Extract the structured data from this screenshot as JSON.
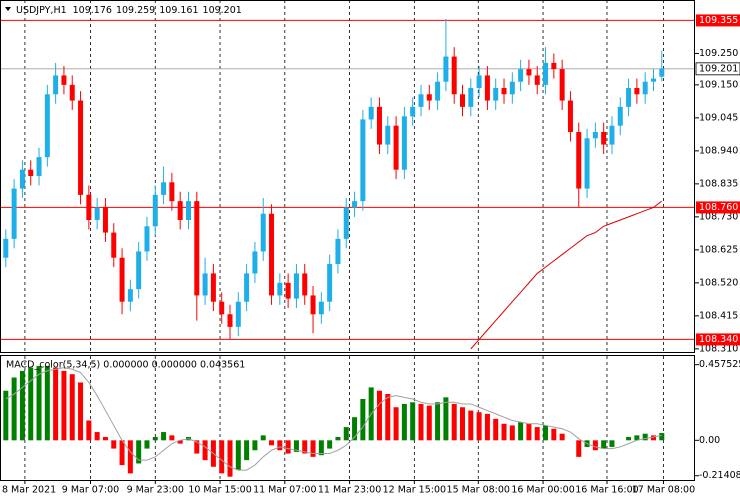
{
  "chart_data": {
    "type": "candlestick",
    "symbol": "USDJPY,H1",
    "up_color": "#1eaee8",
    "down_color": "#ff0000",
    "open": [
      108.6,
      108.66,
      108.82,
      108.88,
      108.86,
      108.92,
      109.12,
      109.18,
      109.15,
      109.1,
      108.8,
      108.72,
      108.76,
      108.68,
      108.6,
      108.46,
      108.5,
      108.62,
      108.7,
      108.8,
      108.84,
      108.78,
      108.72,
      108.78,
      108.48,
      108.55,
      108.46,
      108.42,
      108.38,
      108.46,
      108.55,
      108.62,
      108.74,
      108.48,
      108.52,
      108.47,
      108.55,
      108.48,
      108.42,
      108.46,
      108.58,
      108.66,
      108.76,
      108.78,
      109.04,
      109.08,
      108.96,
      109.02,
      108.88,
      109.05,
      109.08,
      109.12,
      109.1,
      109.16,
      109.24,
      109.12,
      109.08,
      109.14,
      109.18,
      109.1,
      109.14,
      109.12,
      109.16,
      109.2,
      109.18,
      109.15,
      109.22,
      109.2,
      109.1,
      109.0,
      108.82,
      108.98,
      109.0,
      108.96,
      109.02,
      109.08,
      109.14,
      109.12,
      109.16,
      109.176
    ],
    "high": [
      108.69,
      108.85,
      108.91,
      108.91,
      108.95,
      109.15,
      109.22,
      109.21,
      109.18,
      109.13,
      108.83,
      108.79,
      108.79,
      108.71,
      108.63,
      108.53,
      108.65,
      108.73,
      108.83,
      108.89,
      108.87,
      108.81,
      108.81,
      108.81,
      108.6,
      108.58,
      108.49,
      108.45,
      108.49,
      108.58,
      108.65,
      108.79,
      108.77,
      108.55,
      108.55,
      108.58,
      108.58,
      108.51,
      108.49,
      108.61,
      108.69,
      108.79,
      108.81,
      109.07,
      109.11,
      109.11,
      109.05,
      109.05,
      109.08,
      109.11,
      109.15,
      109.15,
      109.19,
      109.36,
      109.27,
      109.15,
      109.17,
      109.21,
      109.21,
      109.17,
      109.17,
      109.19,
      109.23,
      109.23,
      109.21,
      109.27,
      109.25,
      109.23,
      109.13,
      109.03,
      109.01,
      109.03,
      109.03,
      109.05,
      109.11,
      109.17,
      109.17,
      109.19,
      109.2,
      109.259
    ],
    "low": [
      108.57,
      108.63,
      108.79,
      108.83,
      108.83,
      108.89,
      109.09,
      109.12,
      109.07,
      108.77,
      108.69,
      108.69,
      108.65,
      108.57,
      108.42,
      108.43,
      108.47,
      108.59,
      108.67,
      108.77,
      108.75,
      108.69,
      108.69,
      108.4,
      108.45,
      108.43,
      108.39,
      108.34,
      108.35,
      108.43,
      108.52,
      108.59,
      108.45,
      108.45,
      108.44,
      108.44,
      108.45,
      108.36,
      108.39,
      108.43,
      108.55,
      108.63,
      108.73,
      108.75,
      109.01,
      108.93,
      108.93,
      108.85,
      108.85,
      109.02,
      109.05,
      109.07,
      109.07,
      109.13,
      109.09,
      109.05,
      109.05,
      109.11,
      109.07,
      109.07,
      109.09,
      109.09,
      109.13,
      109.15,
      109.12,
      109.12,
      109.17,
      109.07,
      108.97,
      108.76,
      108.79,
      108.95,
      108.93,
      108.93,
      108.99,
      109.05,
      109.09,
      109.09,
      109.13,
      109.161
    ],
    "close": [
      108.66,
      108.82,
      108.88,
      108.86,
      108.92,
      109.12,
      109.18,
      109.15,
      109.1,
      108.8,
      108.72,
      108.76,
      108.68,
      108.6,
      108.46,
      108.5,
      108.62,
      108.7,
      108.8,
      108.84,
      108.78,
      108.72,
      108.78,
      108.48,
      108.55,
      108.46,
      108.42,
      108.38,
      108.46,
      108.55,
      108.62,
      108.74,
      108.48,
      108.52,
      108.47,
      108.55,
      108.48,
      108.42,
      108.46,
      108.58,
      108.66,
      108.76,
      108.78,
      109.04,
      109.08,
      108.96,
      109.02,
      108.88,
      109.05,
      109.08,
      109.12,
      109.1,
      109.16,
      109.24,
      109.12,
      109.08,
      109.14,
      109.18,
      109.1,
      109.14,
      109.12,
      109.16,
      109.2,
      109.18,
      109.15,
      109.22,
      109.2,
      109.1,
      109.0,
      108.82,
      108.98,
      109.0,
      108.96,
      109.02,
      109.08,
      109.14,
      109.12,
      109.16,
      109.17,
      109.201
    ],
    "ma": {
      "color": "#e00000",
      "values": [
        null,
        null,
        null,
        null,
        null,
        null,
        null,
        null,
        null,
        null,
        null,
        null,
        null,
        null,
        null,
        null,
        null,
        null,
        null,
        null,
        null,
        null,
        null,
        null,
        null,
        null,
        null,
        null,
        null,
        null,
        null,
        null,
        null,
        null,
        null,
        null,
        null,
        null,
        null,
        null,
        null,
        null,
        null,
        null,
        null,
        null,
        null,
        null,
        null,
        null,
        null,
        null,
        null,
        null,
        null,
        null,
        108.31,
        108.34,
        108.37,
        108.4,
        108.43,
        108.46,
        108.49,
        108.52,
        108.55,
        108.57,
        108.59,
        108.61,
        108.63,
        108.65,
        108.67,
        108.68,
        108.7,
        108.71,
        108.72,
        108.73,
        108.74,
        108.75,
        108.76,
        108.78
      ]
    },
    "xlim": [
      -0.7,
      83
    ],
    "xticks": [
      {
        "value": 2.3,
        "label": "8 Mar 2021"
      },
      {
        "value": 10.2,
        "label": "9 Mar 07:00"
      },
      {
        "value": 18,
        "label": "9 Mar 23:00"
      },
      {
        "value": 25.8,
        "label": "10 Mar 15:00"
      },
      {
        "value": 33.6,
        "label": "11 Mar 07:00"
      },
      {
        "value": 41.4,
        "label": "11 Mar 23:00"
      },
      {
        "value": 49.2,
        "label": "12 Mar 15:00"
      },
      {
        "value": 56.9,
        "label": "15 Mar 08:00"
      },
      {
        "value": 64.7,
        "label": "16 Mar 00:00"
      },
      {
        "value": 72.4,
        "label": "16 Mar 16:00"
      },
      {
        "value": 79.2,
        "label": "17 Mar 08:00"
      }
    ],
    "ylim": [
      108.3,
      109.42
    ],
    "yticks": [
      {
        "value": 109.25,
        "label": "109.250"
      },
      {
        "value": 109.15,
        "label": "109.150"
      },
      109.045,
      {
        "value": 108.94,
        "label": "108.940"
      },
      108.835,
      {
        "value": 108.73,
        "label": "108.730"
      },
      108.625,
      {
        "value": 108.52,
        "label": "108.520"
      },
      108.415,
      {
        "value": 108.31,
        "label": "108.310"
      }
    ],
    "hlines": [
      {
        "value": 109.355,
        "label": "109.355",
        "color": "#ff0000"
      },
      {
        "value": 108.76,
        "label": "108.760",
        "color": "#ff0000"
      },
      {
        "value": 108.34,
        "label": "108.340",
        "color": "#ff0000"
      }
    ],
    "current_color": "#a0a0a0",
    "macd": {
      "title": "MACD_color(5,34,5) 0.000000 0.000000 0.043561",
      "up_color": "#008000",
      "down_color": "#ff0000",
      "signal_color": "#a0a0a0",
      "ylim": [
        -0.24,
        0.51
      ],
      "yticks": [
        0.457525,
        {
          "value": 0,
          "label": "0.00"
        },
        -0.214089
      ],
      "values": [
        0.3,
        0.38,
        0.42,
        0.44,
        0.45,
        0.45,
        0.44,
        0.42,
        0.4,
        0.35,
        0.12,
        0.05,
        0.02,
        -0.05,
        -0.15,
        -0.2,
        -0.14,
        -0.05,
        0.02,
        0.05,
        0.03,
        -0.02,
        0.02,
        -0.08,
        -0.12,
        -0.16,
        -0.2,
        -0.22,
        -0.18,
        -0.12,
        -0.06,
        0.03,
        -0.03,
        -0.06,
        -0.08,
        -0.07,
        -0.08,
        -0.1,
        -0.09,
        -0.05,
        0.02,
        0.08,
        0.14,
        0.25,
        0.32,
        0.3,
        0.28,
        0.2,
        0.22,
        0.23,
        0.22,
        0.21,
        0.23,
        0.26,
        0.22,
        0.2,
        0.18,
        0.17,
        0.16,
        0.13,
        0.1,
        0.09,
        0.11,
        0.1,
        0.08,
        0.09,
        0.07,
        0.04,
        0.0,
        -0.1,
        -0.04,
        -0.06,
        -0.05,
        -0.04,
        0.0,
        0.02,
        0.03,
        0.04,
        0.03,
        0.044
      ],
      "signal": [
        0.25,
        0.28,
        0.32,
        0.36,
        0.4,
        0.42,
        0.43,
        0.44,
        0.43,
        0.41,
        0.35,
        0.27,
        0.18,
        0.09,
        0.0,
        -0.07,
        -0.12,
        -0.12,
        -0.1,
        -0.06,
        -0.02,
        0.0,
        0.01,
        -0.01,
        -0.04,
        -0.08,
        -0.12,
        -0.16,
        -0.18,
        -0.18,
        -0.15,
        -0.1,
        -0.06,
        -0.04,
        -0.05,
        -0.06,
        -0.07,
        -0.08,
        -0.08,
        -0.08,
        -0.06,
        -0.03,
        0.02,
        0.08,
        0.16,
        0.22,
        0.26,
        0.27,
        0.26,
        0.25,
        0.23,
        0.22,
        0.22,
        0.23,
        0.23,
        0.22,
        0.22,
        0.2,
        0.18,
        0.16,
        0.14,
        0.12,
        0.11,
        0.1,
        0.1,
        0.09,
        0.08,
        0.07,
        0.05,
        0.01,
        -0.02,
        -0.04,
        -0.05,
        -0.05,
        -0.04,
        -0.02,
        0.0,
        0.01,
        0.02,
        0.03
      ]
    }
  }
}
